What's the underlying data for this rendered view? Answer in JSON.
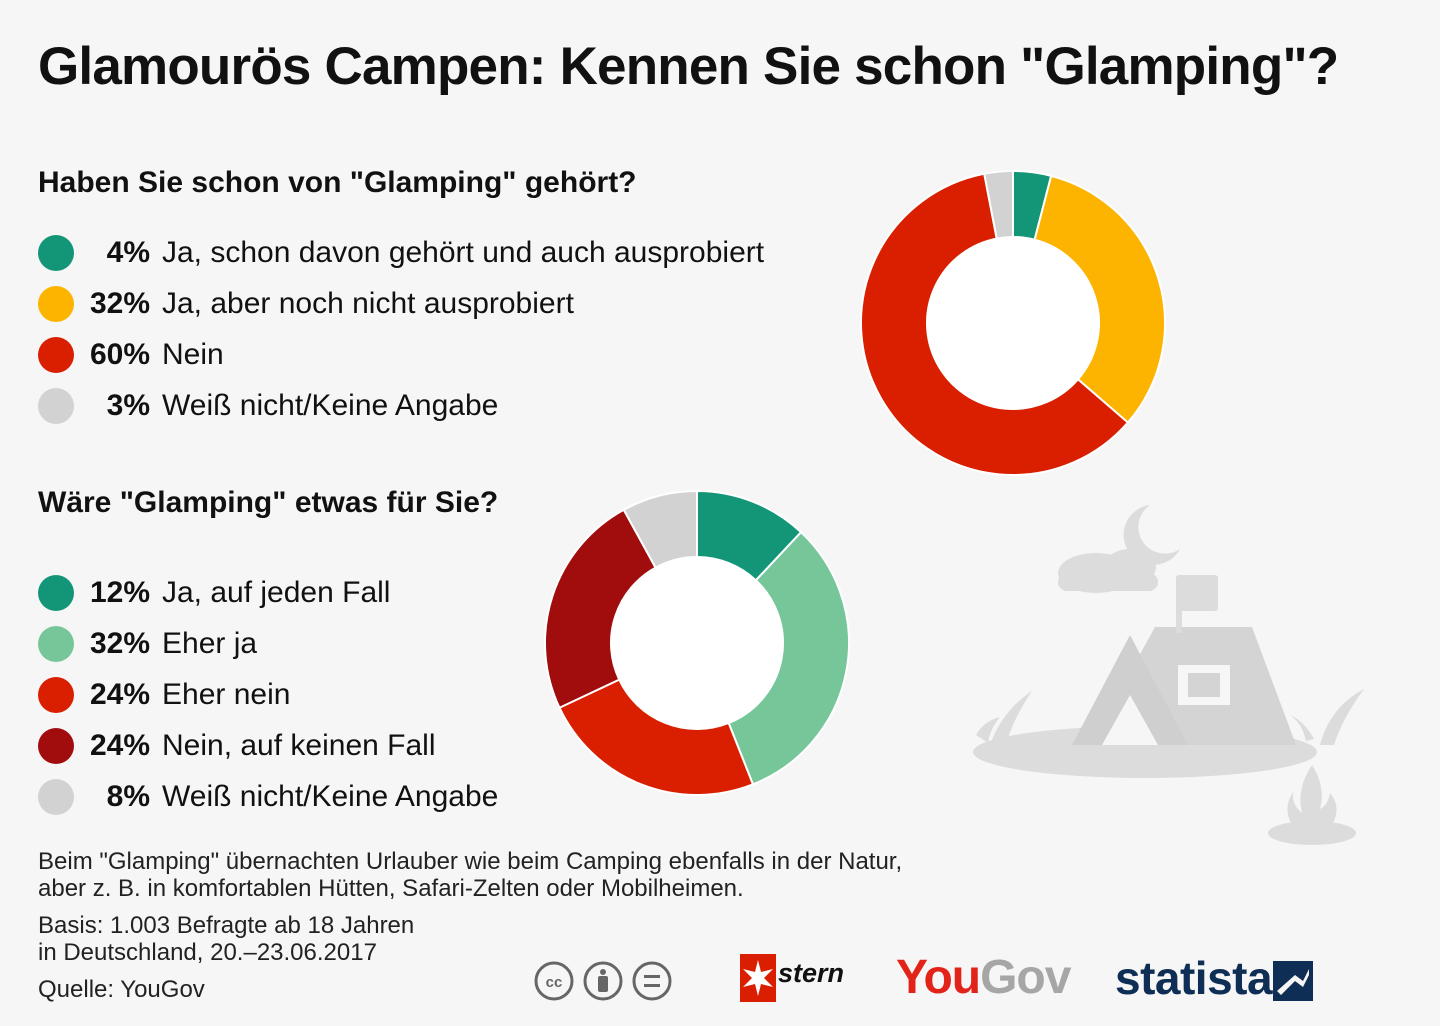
{
  "title": "Glamourös Campen: Kennen Sie schon \"Glamping\"?",
  "chart_data": [
    {
      "type": "pie",
      "title": "Haben Sie schon von \"Glamping\" gehört?",
      "categories": [
        "Ja, schon davon gehört und auch ausprobiert",
        "Ja, aber noch nicht ausprobiert",
        "Nein",
        "Weiß nicht/Keine Angabe"
      ],
      "values": [
        4,
        32,
        60,
        3
      ],
      "labels": [
        "4%",
        "32%",
        "60%",
        "3%"
      ],
      "colors": [
        "#139678",
        "#fdb400",
        "#d91f00",
        "#d2d2d2"
      ],
      "donut": true,
      "legend_position": "left"
    },
    {
      "type": "pie",
      "title": "Wäre \"Glamping\" etwas für Sie?",
      "categories": [
        "Ja, auf jeden Fall",
        "Eher ja",
        "Eher nein",
        "Nein, auf keinen Fall",
        "Weiß nicht/Keine Angabe"
      ],
      "values": [
        12,
        32,
        24,
        24,
        8
      ],
      "labels": [
        "12%",
        "32%",
        "24%",
        "24%",
        "8%"
      ],
      "colors": [
        "#139678",
        "#77c69a",
        "#d91f00",
        "#a10c0c",
        "#d2d2d2"
      ],
      "donut": true,
      "legend_position": "left"
    }
  ],
  "note": {
    "line1": "Beim \"Glamping\" übernachten Urlauber wie beim Camping ebenfalls in der Natur,",
    "line2": "aber z. B. in komfortablen Hütten, Safari-Zelten oder Mobilheimen.",
    "basis1": "Basis: 1.003 Befragte ab 18 Jahren",
    "basis2": "in Deutschland, 20.–23.06.2017",
    "source": "Quelle: YouGov"
  },
  "logos": {
    "stern": "stern",
    "yougov_you": "You",
    "yougov_gov": "Gov",
    "statista": "statista"
  },
  "icons": [
    "cc-icon",
    "attribution-icon",
    "no-derivatives-icon",
    "tent-illustration-icon",
    "moon-icon",
    "cloud-icon",
    "campfire-icon"
  ]
}
